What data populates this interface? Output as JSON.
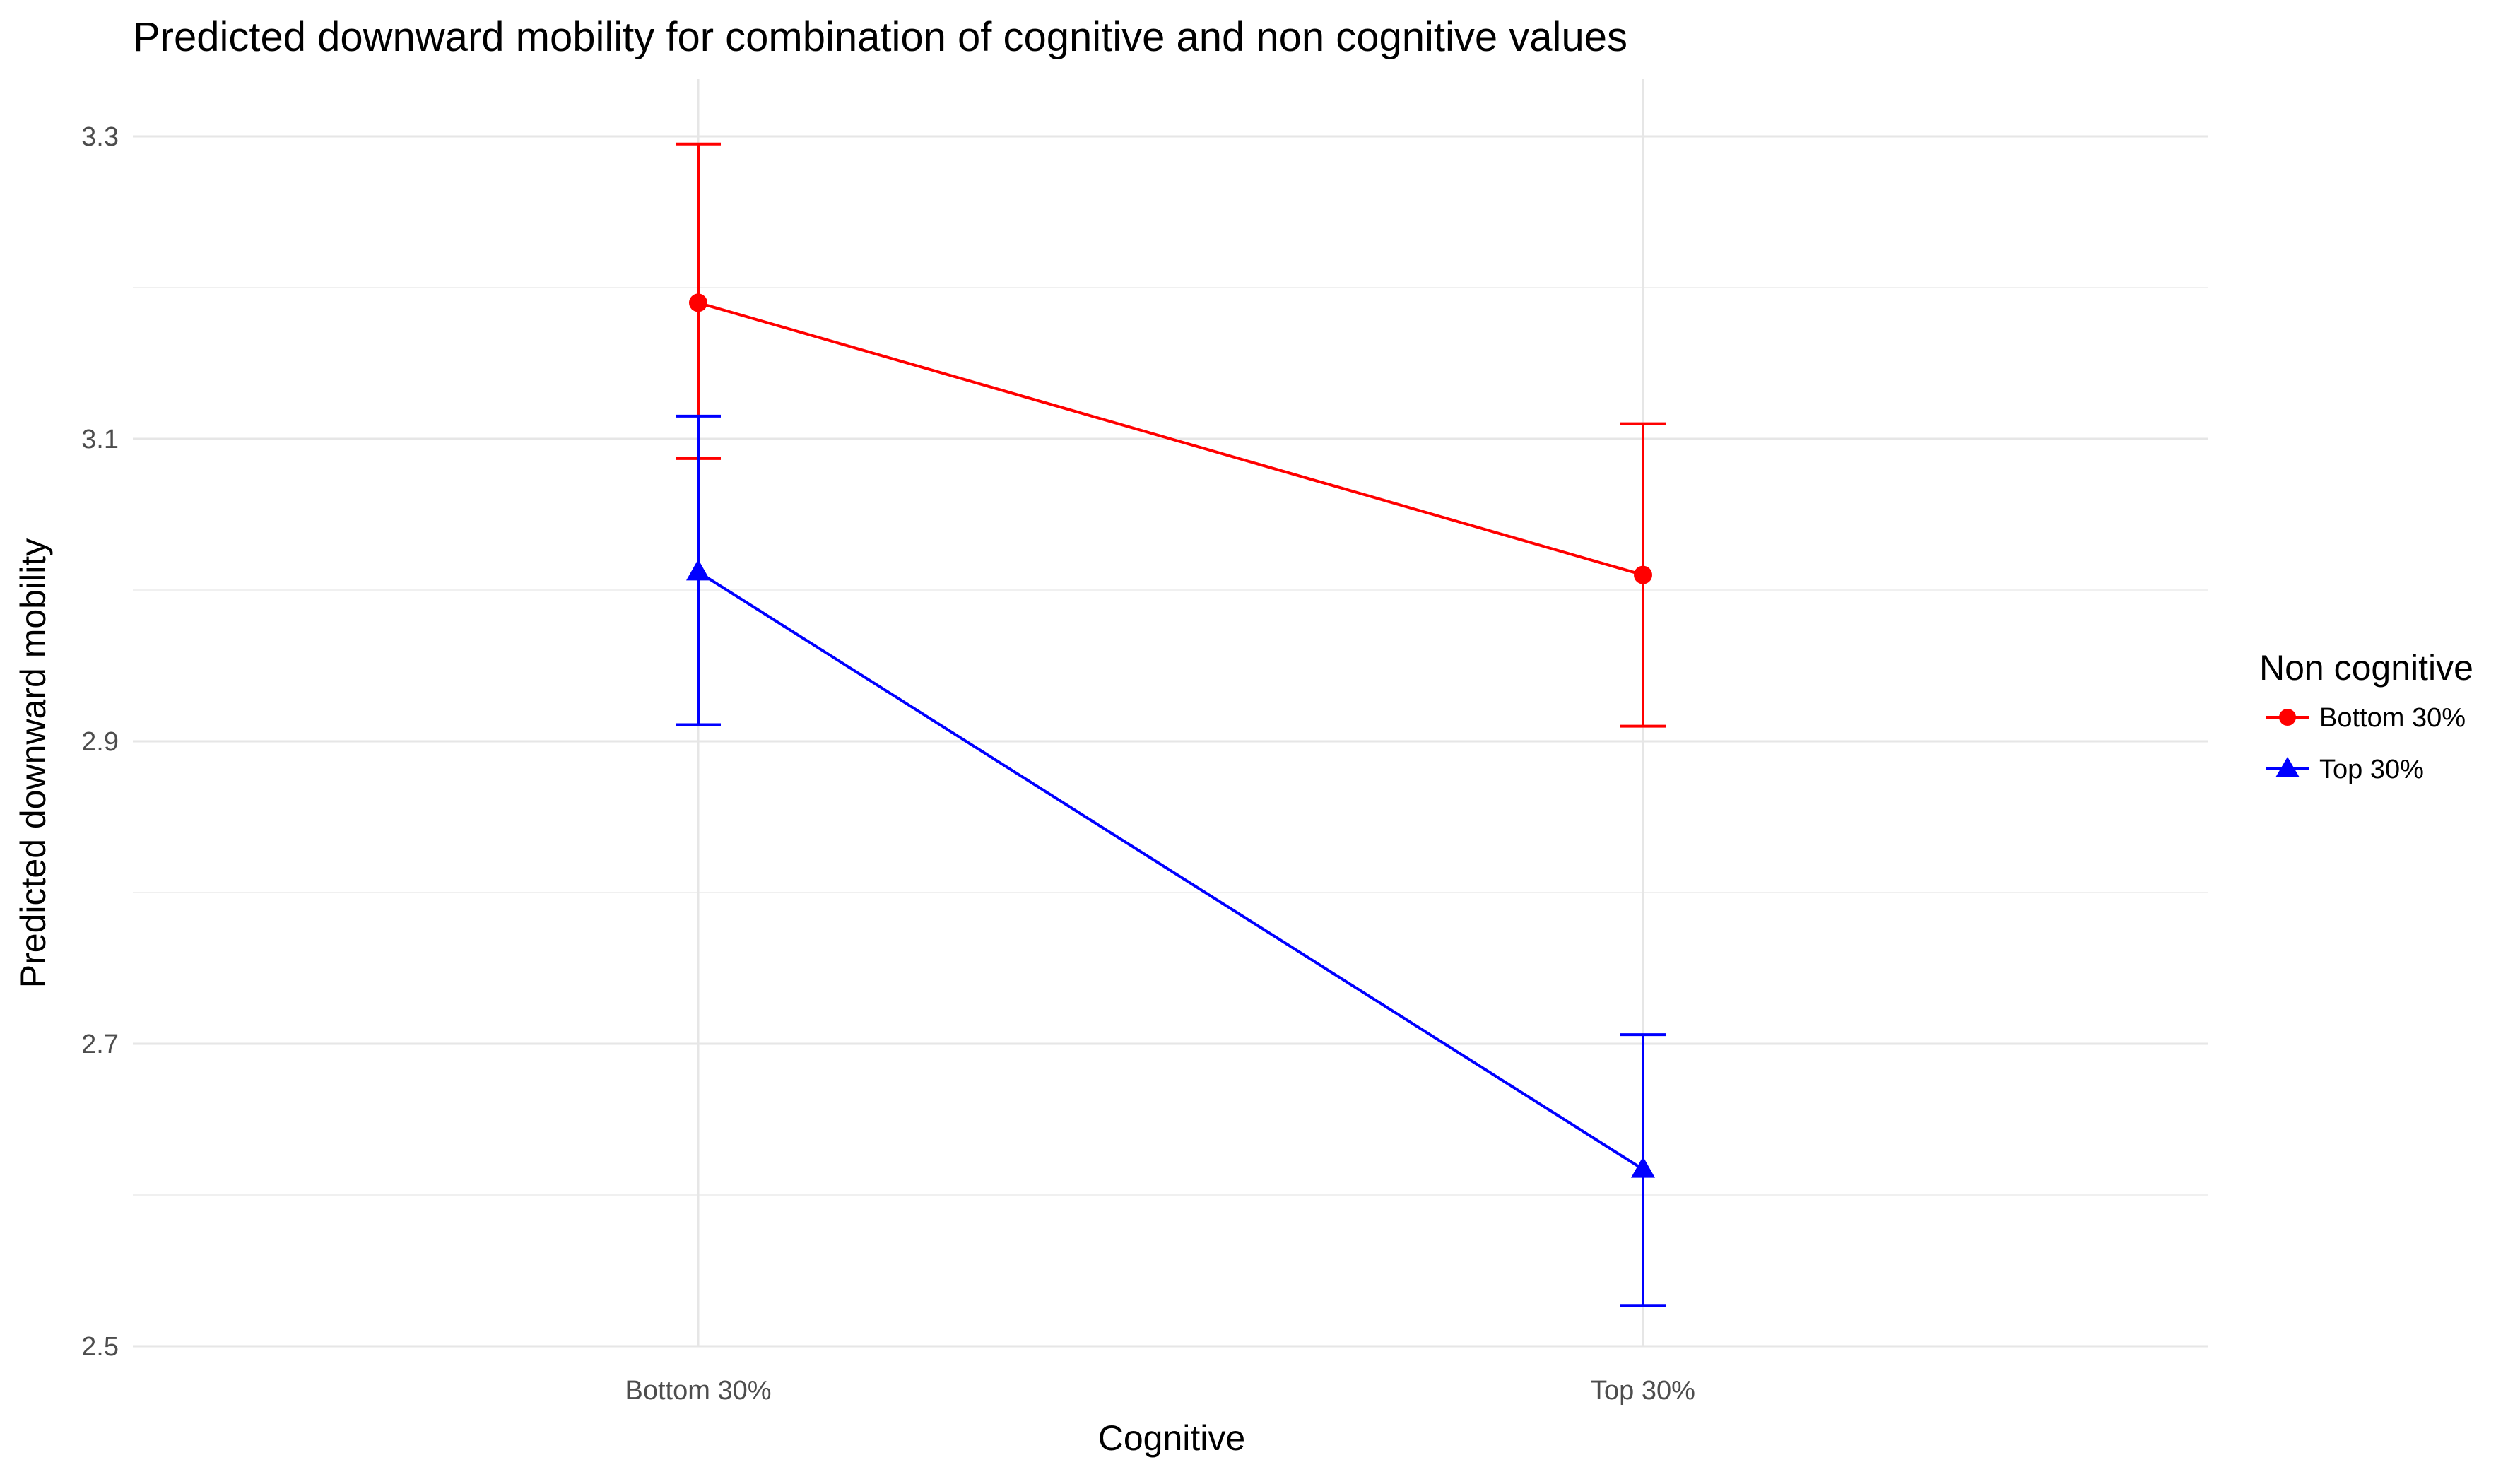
{
  "chart_data": {
    "type": "line",
    "title": "Predicted downward mobility for combination of cognitive and non cognitive values",
    "xlabel": "Cognitive",
    "ylabel": "Predicted downward mobility",
    "categories": [
      "Bottom 30%",
      "Top 30%"
    ],
    "ylim": [
      2.5,
      3.3
    ],
    "yticks": [
      2.5,
      2.7,
      2.9,
      3.1,
      3.3
    ],
    "ytick_labels": [
      "2.5",
      "2.7",
      "2.9",
      "3.1",
      "3.3"
    ],
    "grid": true,
    "legend": {
      "title": "Non cognitive",
      "position": "right"
    },
    "series": [
      {
        "name": "Bottom 30%",
        "color": "#ff0000",
        "marker": "circle",
        "values": [
          3.19,
          3.01
        ],
        "lower": [
          3.087,
          2.91
        ],
        "upper": [
          3.295,
          3.11
        ]
      },
      {
        "name": "Top 30%",
        "color": "#0000ff",
        "marker": "triangle",
        "values": [
          3.012,
          2.617
        ],
        "lower": [
          2.911,
          2.527
        ],
        "upper": [
          3.115,
          2.706
        ]
      }
    ]
  }
}
